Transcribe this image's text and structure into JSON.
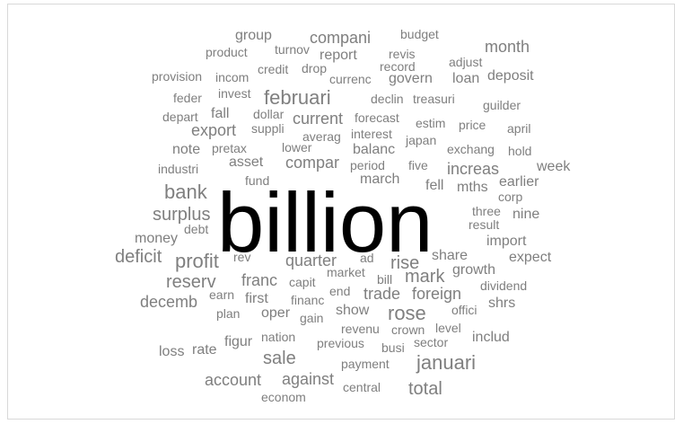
{
  "wordcloud": {
    "words": [
      {
        "text": "billion",
        "weight": 100
      },
      {
        "text": "group",
        "weight": 10
      },
      {
        "text": "compani",
        "weight": 12
      },
      {
        "text": "budget",
        "weight": 8
      },
      {
        "text": "product",
        "weight": 8
      },
      {
        "text": "turnov",
        "weight": 8
      },
      {
        "text": "report",
        "weight": 10
      },
      {
        "text": "revis",
        "weight": 8
      },
      {
        "text": "month",
        "weight": 12
      },
      {
        "text": "provision",
        "weight": 8
      },
      {
        "text": "incom",
        "weight": 8
      },
      {
        "text": "credit",
        "weight": 8
      },
      {
        "text": "drop",
        "weight": 8
      },
      {
        "text": "record",
        "weight": 8
      },
      {
        "text": "adjust",
        "weight": 8
      },
      {
        "text": "currenc",
        "weight": 8
      },
      {
        "text": "govern",
        "weight": 10
      },
      {
        "text": "loan",
        "weight": 10
      },
      {
        "text": "deposit",
        "weight": 10
      },
      {
        "text": "feder",
        "weight": 8
      },
      {
        "text": "invest",
        "weight": 8
      },
      {
        "text": "februari",
        "weight": 16
      },
      {
        "text": "declin",
        "weight": 8
      },
      {
        "text": "treasuri",
        "weight": 8
      },
      {
        "text": "guilder",
        "weight": 8
      },
      {
        "text": "depart",
        "weight": 8
      },
      {
        "text": "fall",
        "weight": 10
      },
      {
        "text": "dollar",
        "weight": 8
      },
      {
        "text": "current",
        "weight": 12
      },
      {
        "text": "forecast",
        "weight": 8
      },
      {
        "text": "estim",
        "weight": 8
      },
      {
        "text": "price",
        "weight": 8
      },
      {
        "text": "april",
        "weight": 8
      },
      {
        "text": "export",
        "weight": 12
      },
      {
        "text": "suppli",
        "weight": 8
      },
      {
        "text": "averag",
        "weight": 8
      },
      {
        "text": "interest",
        "weight": 8
      },
      {
        "text": "japan",
        "weight": 8
      },
      {
        "text": "note",
        "weight": 10
      },
      {
        "text": "pretax",
        "weight": 8
      },
      {
        "text": "lower",
        "weight": 8
      },
      {
        "text": "balanc",
        "weight": 10
      },
      {
        "text": "exchang",
        "weight": 8
      },
      {
        "text": "hold",
        "weight": 8
      },
      {
        "text": "industri",
        "weight": 8
      },
      {
        "text": "asset",
        "weight": 10
      },
      {
        "text": "compar",
        "weight": 10
      },
      {
        "text": "period",
        "weight": 8
      },
      {
        "text": "five",
        "weight": 8
      },
      {
        "text": "increas",
        "weight": 12
      },
      {
        "text": "week",
        "weight": 10
      },
      {
        "text": "fund",
        "weight": 8
      },
      {
        "text": "march",
        "weight": 10
      },
      {
        "text": "earlier",
        "weight": 10
      },
      {
        "text": "bank",
        "weight": 18
      },
      {
        "text": "fell",
        "weight": 10
      },
      {
        "text": "mths",
        "weight": 10
      },
      {
        "text": "corp",
        "weight": 8
      },
      {
        "text": "surplus",
        "weight": 14
      },
      {
        "text": "three",
        "weight": 8
      },
      {
        "text": "nine",
        "weight": 10
      },
      {
        "text": "debt",
        "weight": 8
      },
      {
        "text": "result",
        "weight": 8
      },
      {
        "text": "money",
        "weight": 10
      },
      {
        "text": "import",
        "weight": 10
      },
      {
        "text": "deficit",
        "weight": 14
      },
      {
        "text": "profit",
        "weight": 16
      },
      {
        "text": "rev",
        "weight": 8
      },
      {
        "text": "quarter",
        "weight": 12
      },
      {
        "text": "ad",
        "weight": 8
      },
      {
        "text": "rise",
        "weight": 14
      },
      {
        "text": "share",
        "weight": 10
      },
      {
        "text": "expect",
        "weight": 10
      },
      {
        "text": "reserv",
        "weight": 14
      },
      {
        "text": "franc",
        "weight": 12
      },
      {
        "text": "capit",
        "weight": 8
      },
      {
        "text": "market",
        "weight": 8
      },
      {
        "text": "bill",
        "weight": 8
      },
      {
        "text": "mark",
        "weight": 14
      },
      {
        "text": "growth",
        "weight": 10
      },
      {
        "text": "dividend",
        "weight": 8
      },
      {
        "text": "decemb",
        "weight": 12
      },
      {
        "text": "earn",
        "weight": 8
      },
      {
        "text": "first",
        "weight": 10
      },
      {
        "text": "financ",
        "weight": 8
      },
      {
        "text": "end",
        "weight": 8
      },
      {
        "text": "trade",
        "weight": 12
      },
      {
        "text": "foreign",
        "weight": 12
      },
      {
        "text": "shrs",
        "weight": 10
      },
      {
        "text": "plan",
        "weight": 8
      },
      {
        "text": "oper",
        "weight": 10
      },
      {
        "text": "gain",
        "weight": 8
      },
      {
        "text": "show",
        "weight": 10
      },
      {
        "text": "rose",
        "weight": 16
      },
      {
        "text": "offici",
        "weight": 8
      },
      {
        "text": "revenu",
        "weight": 8
      },
      {
        "text": "crown",
        "weight": 8
      },
      {
        "text": "level",
        "weight": 8
      },
      {
        "text": "includ",
        "weight": 10
      },
      {
        "text": "figur",
        "weight": 10
      },
      {
        "text": "nation",
        "weight": 8
      },
      {
        "text": "sector",
        "weight": 8
      },
      {
        "text": "loss",
        "weight": 10
      },
      {
        "text": "rate",
        "weight": 10
      },
      {
        "text": "previous",
        "weight": 8
      },
      {
        "text": "busi",
        "weight": 8
      },
      {
        "text": "sale",
        "weight": 14
      },
      {
        "text": "januari",
        "weight": 16
      },
      {
        "text": "payment",
        "weight": 8
      },
      {
        "text": "account",
        "weight": 12
      },
      {
        "text": "against",
        "weight": 12
      },
      {
        "text": "central",
        "weight": 8
      },
      {
        "text": "total",
        "weight": 14
      },
      {
        "text": "econom",
        "weight": 8
      }
    ]
  }
}
